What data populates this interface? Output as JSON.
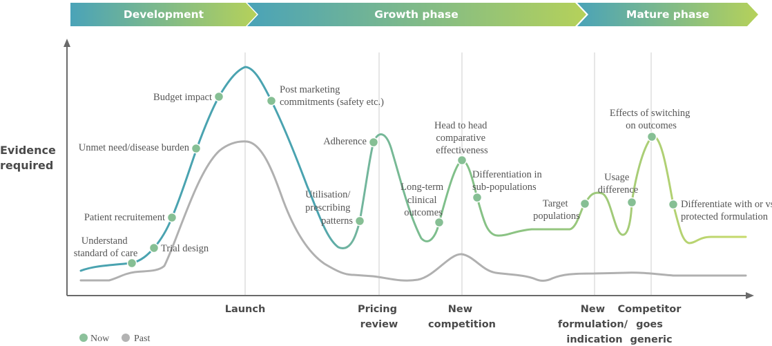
{
  "phases": [
    {
      "label": "Development"
    },
    {
      "label": "Growth phase"
    },
    {
      "label": "Mature phase"
    }
  ],
  "y_axis_label": [
    "Evidence",
    "required"
  ],
  "milestones": [
    {
      "lines": [
        "Launch"
      ]
    },
    {
      "lines": [
        "Pricing",
        "review"
      ]
    },
    {
      "lines": [
        "New",
        "competition"
      ]
    },
    {
      "lines": [
        "New",
        "formulation/",
        "indication"
      ]
    },
    {
      "lines": [
        "Competitor",
        "goes",
        "generic"
      ]
    }
  ],
  "annotations": [
    {
      "lines": [
        "Understand",
        "standard of care"
      ]
    },
    {
      "lines": [
        "Trial design"
      ]
    },
    {
      "lines": [
        "Patient recruitement"
      ]
    },
    {
      "lines": [
        "Unmet need/disease burden"
      ]
    },
    {
      "lines": [
        "Budget impact"
      ]
    },
    {
      "lines": [
        "Post marketing",
        "commitments (safety etc.)"
      ]
    },
    {
      "lines": [
        "Utilisation/",
        "prescribing",
        "patterns"
      ]
    },
    {
      "lines": [
        "Adherence"
      ]
    },
    {
      "lines": [
        "Long-term",
        "clinical",
        "outcomes"
      ]
    },
    {
      "lines": [
        "Head to head",
        "comparative",
        "effectiveness"
      ]
    },
    {
      "lines": [
        "Differentiation in",
        "sub-populations"
      ]
    },
    {
      "lines": [
        "Target",
        "populations"
      ]
    },
    {
      "lines": [
        "Usage",
        "difference"
      ]
    },
    {
      "lines": [
        "Effects of switching",
        "on outcomes"
      ]
    },
    {
      "lines": [
        "Differentiate with or vs.",
        "protected formulation"
      ]
    }
  ],
  "legend": [
    {
      "label": "Now",
      "color": "#8cc19b"
    },
    {
      "label": "Past",
      "color": "#b3b3b3"
    }
  ],
  "colors": {
    "teal": "#4aa3b0",
    "green": "#7fbf8a",
    "lime": "#b9d160",
    "past": "#b0b0b0",
    "marker": "#86bf94",
    "axis": "#6a6a6a",
    "guide": "#cccccc"
  }
}
